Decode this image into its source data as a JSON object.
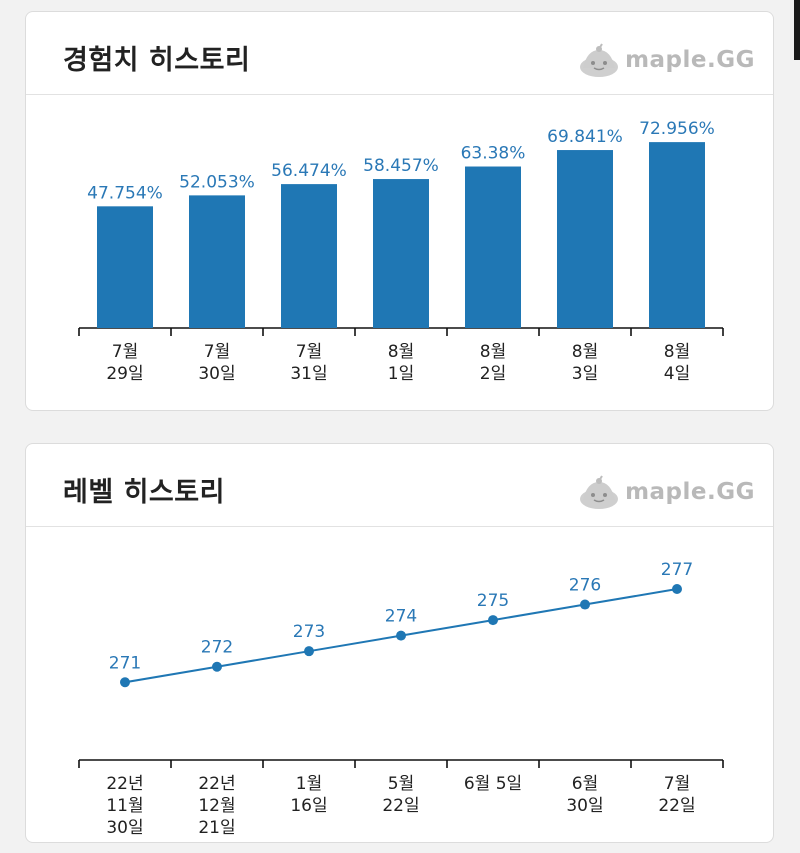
{
  "colors": {
    "accent": "#1f77b4",
    "label": "#2a78b6"
  },
  "exp_card": {
    "title": "경험치 히스토리",
    "logo_text": "maple.GG",
    "logo_icon": "slime-icon"
  },
  "level_card": {
    "title": "레벨 히스토리",
    "logo_text": "maple.GG",
    "logo_icon": "slime-icon"
  },
  "chart_data": [
    {
      "type": "bar",
      "categories": [
        [
          "7월",
          "29일"
        ],
        [
          "7월",
          "30일"
        ],
        [
          "7월",
          "31일"
        ],
        [
          "8월",
          "1일"
        ],
        [
          "8월",
          "2일"
        ],
        [
          "8월",
          "3일"
        ],
        [
          "8월",
          "4일"
        ]
      ],
      "values": [
        47.754,
        52.053,
        56.474,
        58.457,
        63.38,
        69.841,
        72.956
      ],
      "value_labels": [
        "47.754%",
        "52.053%",
        "56.474%",
        "58.457%",
        "63.38%",
        "69.841%",
        "72.956%"
      ],
      "ylim": [
        0,
        73
      ],
      "grid": false
    },
    {
      "type": "line",
      "categories": [
        [
          "22년",
          "11월",
          "30일"
        ],
        [
          "22년",
          "12월",
          "21일"
        ],
        [
          "1월",
          "16일"
        ],
        [
          "5월",
          "22일"
        ],
        [
          "6월 5일"
        ],
        [
          "6월",
          "30일"
        ],
        [
          "7월",
          "22일"
        ]
      ],
      "values": [
        271,
        272,
        273,
        274,
        275,
        276,
        277
      ],
      "value_labels": [
        "271",
        "272",
        "273",
        "274",
        "275",
        "276",
        "277"
      ],
      "ylim": [
        266,
        277
      ],
      "grid": false
    }
  ]
}
